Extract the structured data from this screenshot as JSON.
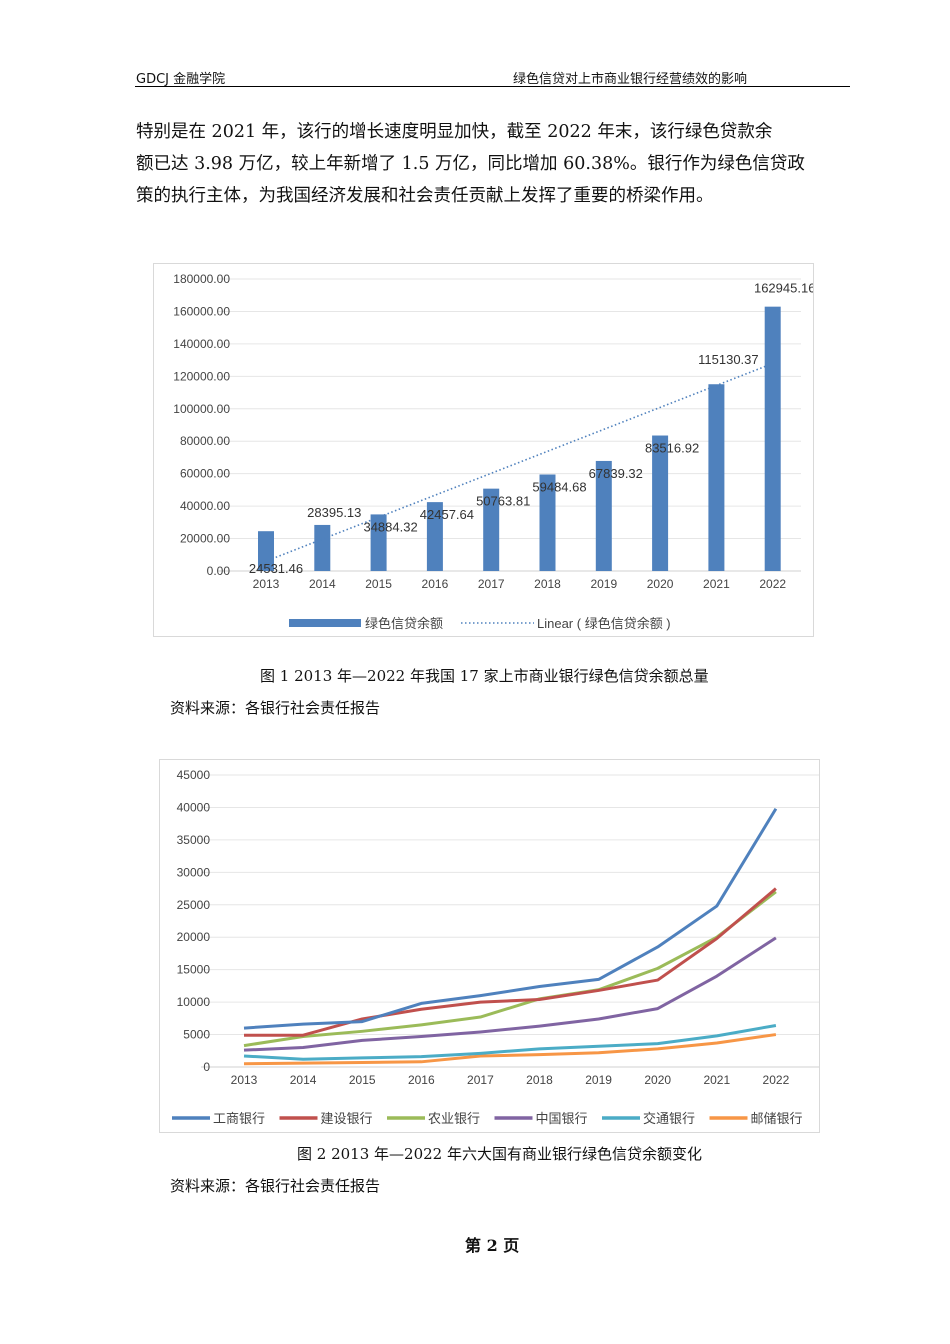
{
  "header": {
    "left": "GDCJ 金融学院",
    "right": "绿色信贷对上市商业银行经营绩效的影响"
  },
  "body_lines": [
    "特别是在 2021 年，该行的增长速度明显加快，截至  2022  年末，该行绿色贷款余",
    "额已达 3.98 万亿，较上年新增了 1.5 万亿，同比增加 60.38%。银行作为绿色信贷政",
    "策的执行主体，为我国经济发展和社会责任贡献上发挥了重要的桥梁作用。"
  ],
  "figure1": {
    "caption": "图 1  2013 年—2022 年我国 17 家上市商业银行绿色信贷余额总量",
    "source": "资料来源：各银行社会责任报告"
  },
  "figure2": {
    "caption": "图 2  2013 年—2022 年六大国有商业银行绿色信贷余额变化",
    "source": "资料来源：各银行社会责任报告"
  },
  "footer": {
    "page_label": "第  2  页"
  },
  "chart_data": [
    {
      "type": "bar",
      "categories": [
        "2013",
        "2014",
        "2015",
        "2016",
        "2017",
        "2018",
        "2019",
        "2020",
        "2021",
        "2022"
      ],
      "values": [
        24531.46,
        28395.13,
        34884.32,
        42457.64,
        50763.81,
        59484.68,
        67839.32,
        83516.92,
        115130.37,
        162945.16
      ],
      "data_labels": [
        "24531.46",
        "28395.13",
        "34884.32",
        "42457.64",
        "50763.81",
        "59484.68",
        "67839.32",
        "83516.92",
        "115130.37",
        "162945.16"
      ],
      "yticks": [
        "0.00",
        "20000.00",
        "40000.00",
        "60000.00",
        "80000.00",
        "100000.00",
        "120000.00",
        "140000.00",
        "160000.00",
        "180000.00"
      ],
      "ylim": [
        0,
        180000
      ],
      "grid": true,
      "legend_placement": "bottom",
      "series_name": "绿色信贷余额",
      "trendline": {
        "type": "linear",
        "name": "Linear ( 绿色信贷余额 )"
      },
      "color": "#4f81bd"
    },
    {
      "type": "line",
      "categories": [
        "2013",
        "2014",
        "2015",
        "2016",
        "2017",
        "2018",
        "2019",
        "2020",
        "2021",
        "2022"
      ],
      "yticks": [
        "0",
        "5000",
        "10000",
        "15000",
        "20000",
        "25000",
        "30000",
        "35000",
        "40000",
        "45000"
      ],
      "ylim": [
        0,
        45000
      ],
      "grid": true,
      "legend_placement": "bottom",
      "series": [
        {
          "name": "工商银行",
          "color": "#4f81bd",
          "values": [
            6000,
            6600,
            7000,
            9800,
            11000,
            12400,
            13500,
            18500,
            24800,
            39800
          ]
        },
        {
          "name": "建设银行",
          "color": "#c0504d",
          "values": [
            4900,
            4900,
            7400,
            8900,
            10000,
            10400,
            11800,
            13400,
            19800,
            27500
          ]
        },
        {
          "name": "农业银行",
          "color": "#9bbb59",
          "values": [
            3300,
            4700,
            5500,
            6500,
            7700,
            10500,
            11900,
            15200,
            20000,
            27000
          ]
        },
        {
          "name": "中国银行",
          "color": "#8064a2",
          "values": [
            2600,
            3000,
            4100,
            4700,
            5400,
            6300,
            7400,
            9000,
            14000,
            19900
          ]
        },
        {
          "name": "交通银行",
          "color": "#4bacc6",
          "values": [
            1700,
            1200,
            1400,
            1600,
            2100,
            2800,
            3200,
            3600,
            4800,
            6400
          ]
        },
        {
          "name": "邮储银行",
          "color": "#f79646",
          "values": [
            500,
            600,
            700,
            800,
            1700,
            1900,
            2200,
            2800,
            3700,
            5000
          ]
        }
      ]
    }
  ]
}
